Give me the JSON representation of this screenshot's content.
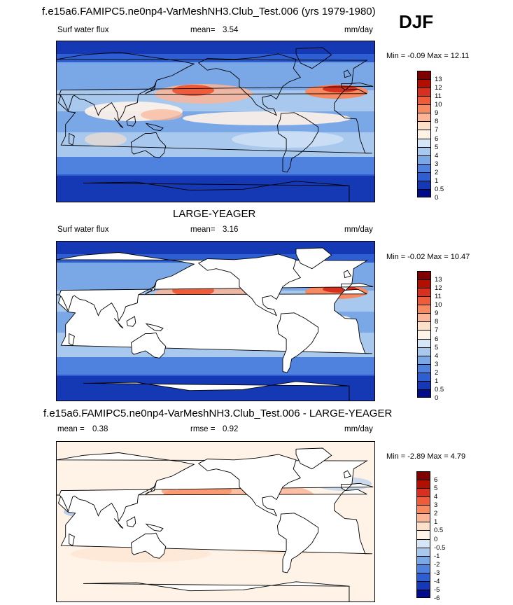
{
  "header": {
    "top_title": "f.e15a6.FAMIPC5.ne0np4-VarMeshNH3.Club_Test.006 (yrs 1979-1980)",
    "season": "DJF"
  },
  "panels": [
    {
      "id": "model",
      "variable": "Surf water flux",
      "stat_label": "mean=",
      "stat_value": "3.54",
      "units": "mm/day",
      "minmax": "Min =  -0.09 Max =  12.11",
      "land_masked": false
    },
    {
      "id": "obs",
      "title": "LARGE-YEAGER",
      "variable": "Surf water flux",
      "stat_label": "mean=",
      "stat_value": "3.16",
      "units": "mm/day",
      "minmax": "Min =  -0.02 Max =  10.47",
      "land_masked": true
    },
    {
      "id": "diff",
      "title": "f.e15a6.FAMIPC5.ne0np4-VarMeshNH3.Club_Test.006 - LARGE-YEAGER",
      "mean_label": "mean =",
      "mean_value": "0.38",
      "rmse_label": "rmse =",
      "rmse_value": "0.92",
      "units": "mm/day",
      "minmax": "Min =  -2.89 Max =   4.79",
      "land_masked": true
    }
  ],
  "chart_data": [
    {
      "type": "heatmap",
      "title": "f.e15a6.FAMIPC5.ne0np4-VarMeshNH3.Club_Test.006 (yrs 1979-1980)",
      "variable": "Surf water flux",
      "units": "mm/day",
      "mean": 3.54,
      "min": -0.09,
      "max": 12.11,
      "colorbar_levels": [
        "13",
        "12",
        "11",
        "10",
        "9",
        "8",
        "7",
        "6",
        "5",
        "4",
        "3",
        "2",
        "1",
        "0.5",
        "0"
      ],
      "colorbar_colors": [
        "#7f0000",
        "#b30f00",
        "#d7301f",
        "#ef5c3a",
        "#f88a61",
        "#fcb596",
        "#fde0c8",
        "#fff3e8",
        "#d7e6f7",
        "#a8c8ee",
        "#7aa7e6",
        "#4f82de",
        "#2d5fd2",
        "#1539b5",
        "#000c8a"
      ]
    },
    {
      "type": "heatmap",
      "title": "LARGE-YEAGER",
      "variable": "Surf water flux",
      "units": "mm/day",
      "mean": 3.16,
      "min": -0.02,
      "max": 10.47,
      "colorbar_levels": [
        "13",
        "12",
        "11",
        "10",
        "9",
        "8",
        "7",
        "6",
        "5",
        "4",
        "3",
        "2",
        "1",
        "0.5",
        "0"
      ],
      "colorbar_colors": [
        "#7f0000",
        "#b30f00",
        "#d7301f",
        "#ef5c3a",
        "#f88a61",
        "#fcb596",
        "#fde0c8",
        "#fff3e8",
        "#d7e6f7",
        "#a8c8ee",
        "#7aa7e6",
        "#4f82de",
        "#2d5fd2",
        "#1539b5",
        "#000c8a"
      ]
    },
    {
      "type": "heatmap",
      "title": "f.e15a6.FAMIPC5.ne0np4-VarMeshNH3.Club_Test.006 - LARGE-YEAGER",
      "units": "mm/day",
      "mean": 0.38,
      "rmse": 0.92,
      "min": -2.89,
      "max": 4.79,
      "colorbar_levels": [
        "6",
        "5",
        "4",
        "3",
        "2",
        "1",
        "0.5",
        "0",
        "-0.5",
        "-1",
        "-2",
        "-3",
        "-4",
        "-5",
        "-6"
      ],
      "colorbar_colors": [
        "#7f0000",
        "#b30f00",
        "#d7301f",
        "#ef5c3a",
        "#f88a61",
        "#fcb596",
        "#fde0c8",
        "#fff3e8",
        "#d7e6f7",
        "#a8c8ee",
        "#7aa7e6",
        "#4f82de",
        "#2d5fd2",
        "#1539b5",
        "#000c8a"
      ]
    }
  ]
}
